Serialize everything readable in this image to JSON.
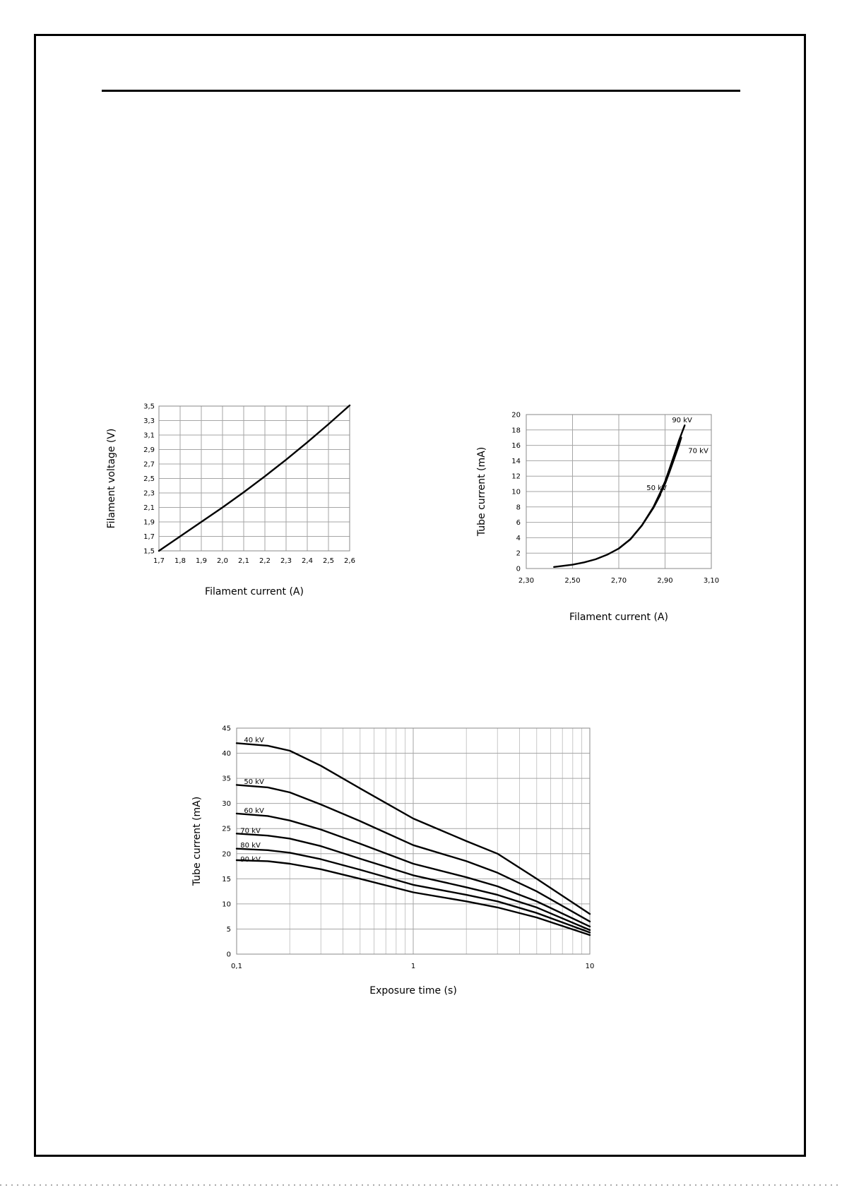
{
  "chart_data": [
    {
      "type": "line",
      "xlabel": "Filament current (A)",
      "ylabel": "Filament voltage (V)",
      "xlim": [
        1.7,
        2.6
      ],
      "ylim": [
        1.5,
        3.5
      ],
      "xticks": [
        "1,7",
        "1,8",
        "1,9",
        "2,0",
        "2,1",
        "2,2",
        "2,3",
        "2,4",
        "2,5",
        "2,6"
      ],
      "xtick_values": [
        1.7,
        1.8,
        1.9,
        2.0,
        2.1,
        2.2,
        2.3,
        2.4,
        2.5,
        2.6
      ],
      "yticks": [
        "1,5",
        "1,7",
        "1,9",
        "2,1",
        "2,3",
        "2,5",
        "2,7",
        "2,9",
        "3,1",
        "3,3",
        "3,5"
      ],
      "ytick_values": [
        1.5,
        1.7,
        1.9,
        2.1,
        2.3,
        2.5,
        2.7,
        2.9,
        3.1,
        3.3,
        3.5
      ],
      "grid": true,
      "series": [
        {
          "x": [
            1.7,
            1.8,
            1.9,
            2.0,
            2.1,
            2.2,
            2.3,
            2.4,
            2.5,
            2.6
          ],
          "y": [
            1.5,
            1.7,
            1.9,
            2.1,
            2.31,
            2.53,
            2.76,
            3.0,
            3.25,
            3.51
          ]
        }
      ]
    },
    {
      "type": "line",
      "xlabel": "Filament current (A)",
      "ylabel": "Tube current (mA)",
      "xlim": [
        2.3,
        3.1
      ],
      "ylim": [
        0,
        20
      ],
      "xticks": [
        "2,30",
        "2,50",
        "2,70",
        "2,90",
        "3,10"
      ],
      "xtick_values": [
        2.3,
        2.5,
        2.7,
        2.9,
        3.1
      ],
      "yticks": [
        "0",
        "2",
        "4",
        "6",
        "8",
        "10",
        "12",
        "14",
        "16",
        "18",
        "20"
      ],
      "ytick_values": [
        0,
        2,
        4,
        6,
        8,
        10,
        12,
        14,
        16,
        18,
        20
      ],
      "grid": true,
      "series": [
        {
          "name": "50 kV",
          "label_at": [
            2.82,
            10.2
          ],
          "x": [
            2.42,
            2.5,
            2.55,
            2.6,
            2.65,
            2.7,
            2.75,
            2.8,
            2.85,
            2.88
          ],
          "y": [
            0.2,
            0.5,
            0.8,
            1.2,
            1.8,
            2.6,
            3.8,
            5.6,
            7.9,
            9.6
          ]
        },
        {
          "name": "70 kV",
          "label_at": [
            3.0,
            15.0
          ],
          "x": [
            2.7,
            2.75,
            2.8,
            2.85,
            2.88,
            2.9,
            2.92,
            2.94,
            2.96,
            2.97
          ],
          "y": [
            2.6,
            3.8,
            5.6,
            7.9,
            9.7,
            11.0,
            12.6,
            14.3,
            16.0,
            17.0
          ]
        },
        {
          "name": "90 kV",
          "label_at": [
            2.93,
            19.0
          ],
          "x": [
            2.7,
            2.75,
            2.8,
            2.85,
            2.88,
            2.9,
            2.92,
            2.94,
            2.96,
            2.985
          ],
          "y": [
            2.6,
            3.8,
            5.6,
            8.0,
            9.9,
            11.3,
            13.0,
            14.8,
            16.6,
            18.6
          ]
        }
      ]
    },
    {
      "type": "line",
      "xlabel": "Exposure time (s)",
      "ylabel": "Tube current (mA)",
      "xscale": "log",
      "xlim": [
        0.1,
        10
      ],
      "ylim": [
        0,
        45
      ],
      "xticks": [
        "0,1",
        "1",
        "10"
      ],
      "xtick_values": [
        0.1,
        1,
        10
      ],
      "yticks": [
        "0",
        "5",
        "10",
        "15",
        "20",
        "25",
        "30",
        "35",
        "40",
        "45"
      ],
      "ytick_values": [
        0,
        5,
        10,
        15,
        20,
        25,
        30,
        35,
        40,
        45
      ],
      "grid": true,
      "series": [
        {
          "name": "40 kV",
          "label_at": [
            0.11,
            42.2
          ],
          "x": [
            0.1,
            0.15,
            0.2,
            0.3,
            0.5,
            1,
            2,
            3,
            5,
            10
          ],
          "y": [
            42,
            41.5,
            40.5,
            37.5,
            33,
            27,
            22.5,
            20,
            15,
            8
          ]
        },
        {
          "name": "50 kV",
          "label_at": [
            0.11,
            33.9
          ],
          "x": [
            0.1,
            0.15,
            0.2,
            0.3,
            0.5,
            1,
            2,
            3,
            5,
            10
          ],
          "y": [
            33.7,
            33.2,
            32.2,
            29.8,
            26.5,
            21.7,
            18.5,
            16.2,
            12.5,
            6.5
          ]
        },
        {
          "name": "60 kV",
          "label_at": [
            0.11,
            28.1
          ],
          "x": [
            0.1,
            0.15,
            0.2,
            0.3,
            0.5,
            1,
            2,
            3,
            5,
            10
          ],
          "y": [
            28,
            27.5,
            26.6,
            24.8,
            22,
            18,
            15.3,
            13.5,
            10.5,
            5.5
          ]
        },
        {
          "name": "70 kV",
          "label_at": [
            0.105,
            24.1
          ],
          "x": [
            0.1,
            0.15,
            0.2,
            0.3,
            0.5,
            1,
            2,
            3,
            5,
            10
          ],
          "y": [
            24,
            23.6,
            23,
            21.5,
            19,
            15.7,
            13.3,
            11.8,
            9.3,
            4.8
          ]
        },
        {
          "name": "80 kV",
          "label_at": [
            0.105,
            21.2
          ],
          "x": [
            0.1,
            0.15,
            0.2,
            0.3,
            0.5,
            1,
            2,
            3,
            5,
            10
          ],
          "y": [
            21,
            20.7,
            20.2,
            18.9,
            16.8,
            13.8,
            11.8,
            10.5,
            8.2,
            4.3
          ]
        },
        {
          "name": "90 kV",
          "label_at": [
            0.105,
            18.4
          ],
          "x": [
            0.1,
            0.15,
            0.2,
            0.3,
            0.5,
            1,
            2,
            3,
            5,
            10
          ],
          "y": [
            18.7,
            18.5,
            18,
            16.9,
            15,
            12.3,
            10.5,
            9.3,
            7.3,
            3.8
          ]
        }
      ]
    }
  ]
}
